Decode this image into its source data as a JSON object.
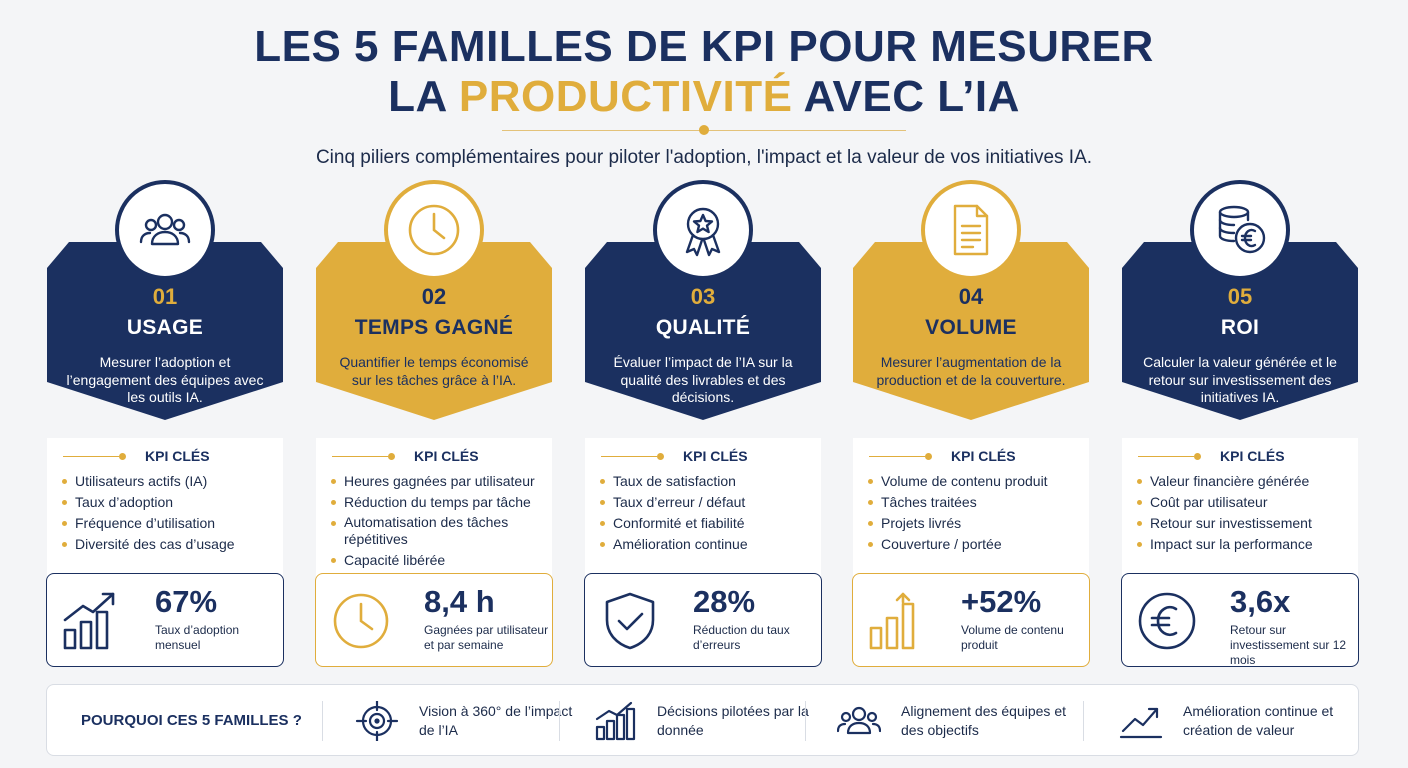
{
  "header": {
    "title_line1": "LES 5 FAMILLES DE KPI POUR MESURER",
    "title_line2_pre": "LA ",
    "title_line2_accent": "PRODUCTIVITÉ",
    "title_line2_post": " AVEC L’IA",
    "subtitle": "Cinq piliers complémentaires pour piloter l'adoption, l'impact et la valeur de vos initiatives IA."
  },
  "colors": {
    "navy": "#1b3060",
    "gold": "#e0ad3c"
  },
  "kpi_label": "KPI CLÉS",
  "families": [
    {
      "number": "01",
      "title": "USAGE",
      "theme": "navy",
      "icon": "users-icon",
      "description": "Mesurer l’adoption et l’engagement des équipes avec les outils IA.",
      "kpis": [
        "Utilisateurs actifs (IA)",
        "Taux d’adoption",
        "Fréquence d’utilisation",
        "Diversité des cas d’usage"
      ],
      "stat": {
        "value": "67%",
        "caption": "Taux d’adoption mensuel",
        "icon": "growth-chart-icon"
      }
    },
    {
      "number": "02",
      "title": "TEMPS GAGNÉ",
      "theme": "gold",
      "icon": "clock-icon",
      "description": "Quantifier le temps économisé sur les tâches grâce à l’IA.",
      "kpis": [
        "Heures gagnées par utilisateur",
        "Réduction du temps par tâche",
        "Automatisation des tâches répétitives",
        "Capacité libérée"
      ],
      "stat": {
        "value": "8,4 h",
        "caption": "Gagnées par utilisateur et par semaine",
        "icon": "clock-icon"
      }
    },
    {
      "number": "03",
      "title": "QUALITÉ",
      "theme": "navy",
      "icon": "award-icon",
      "description": "Évaluer l’impact de l’IA sur la qualité des livrables et des décisions.",
      "kpis": [
        "Taux de satisfaction",
        "Taux d’erreur / défaut",
        "Conformité et fiabilité",
        "Amélioration continue"
      ],
      "stat": {
        "value": "28%",
        "caption": "Réduction du taux d’erreurs",
        "icon": "shield-check-icon"
      }
    },
    {
      "number": "04",
      "title": "VOLUME",
      "theme": "gold",
      "icon": "document-icon",
      "description": "Mesurer l’augmentation de la production et de la couverture.",
      "kpis": [
        "Volume de contenu produit",
        "Tâches traitées",
        "Projets livrés",
        "Couverture / portée"
      ],
      "stat": {
        "value": "+52%",
        "caption": "Volume de contenu produit",
        "icon": "bar-chart-icon"
      }
    },
    {
      "number": "05",
      "title": "ROI",
      "theme": "navy",
      "icon": "coins-euro-icon",
      "description": "Calculer la valeur générée et le retour sur investissement des initiatives IA.",
      "kpis": [
        "Valeur financière générée",
        "Coût par utilisateur",
        "Retour sur investissement",
        "Impact sur la performance"
      ],
      "stat": {
        "value": "3,6x",
        "caption": "Retour sur investissement sur 12 mois",
        "icon": "euro-icon"
      }
    }
  ],
  "footer": {
    "title": "POURQUOI CES 5 FAMILLES ?",
    "items": [
      {
        "text": "Vision à 360° de l’impact de l’IA",
        "icon": "target-icon"
      },
      {
        "text": "Décisions pilotées par la donnée",
        "icon": "chart-icon"
      },
      {
        "text": "Alignement des équipes et des objectifs",
        "icon": "team-icon"
      },
      {
        "text": "Amélioration continue et création de valeur",
        "icon": "trend-icon"
      }
    ]
  }
}
